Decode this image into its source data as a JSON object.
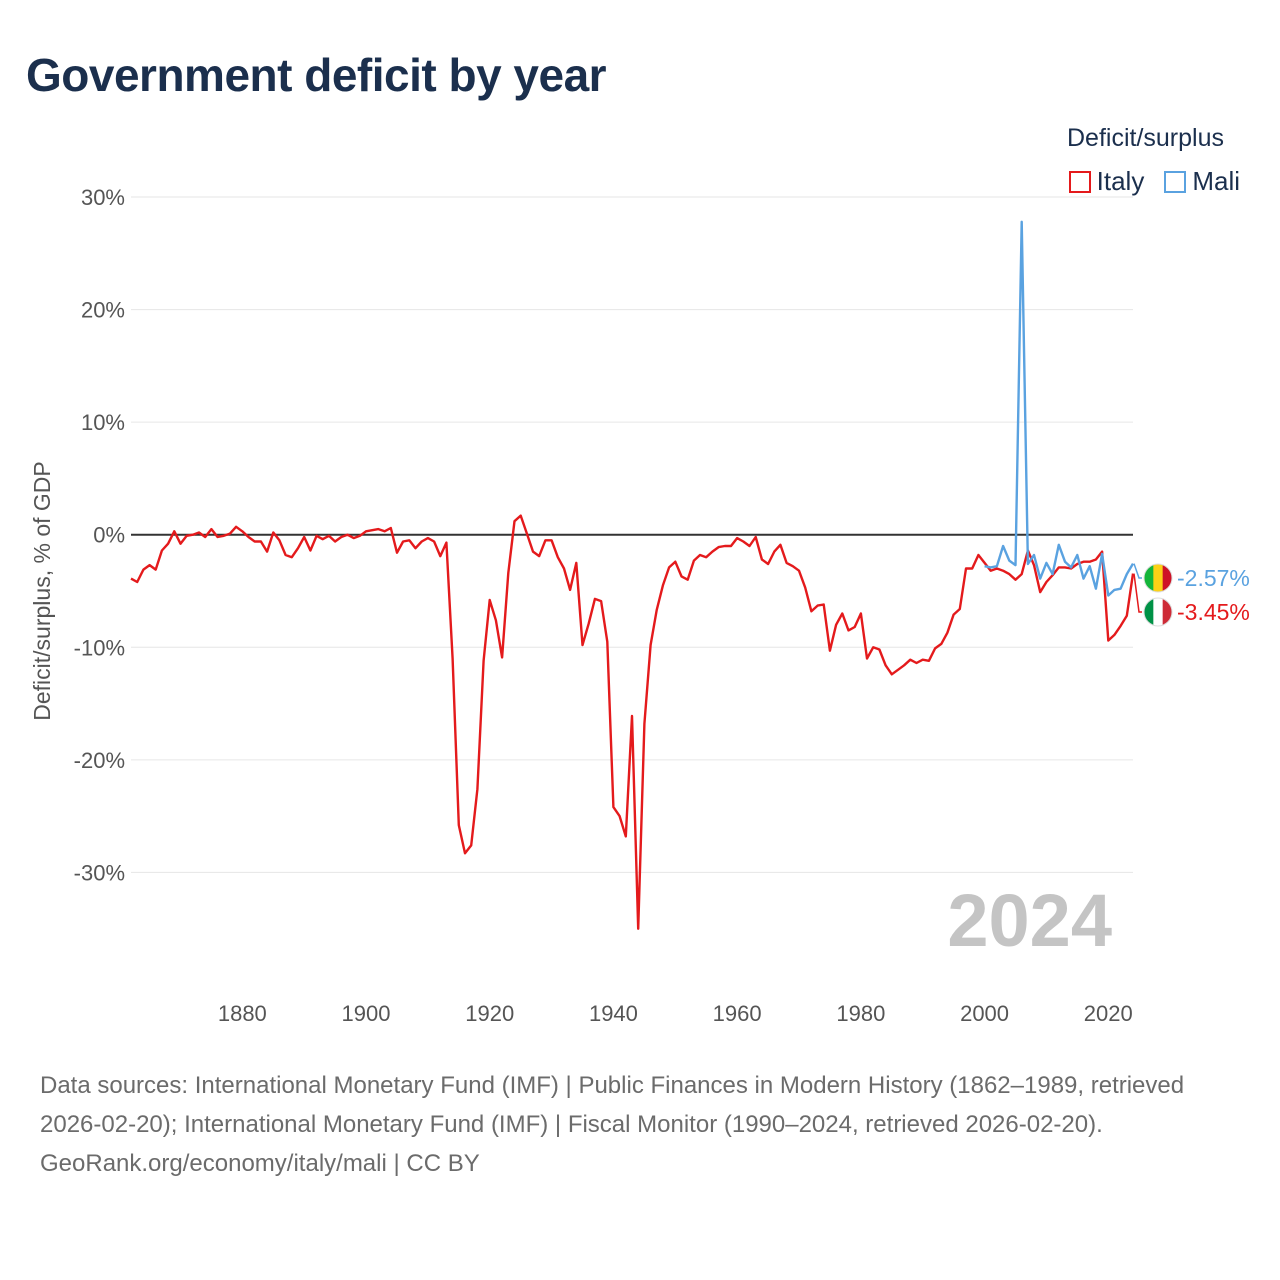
{
  "title": "Government deficit by year",
  "legend": {
    "title": "Deficit/surplus",
    "items": [
      {
        "label": "Italy",
        "color": "#e41a1c"
      },
      {
        "label": "Mali",
        "color": "#5aa2e0"
      }
    ]
  },
  "year_stamp": "2024",
  "end_labels": {
    "mali": "-2.57%",
    "italy": "-3.45%"
  },
  "flags": {
    "mali": [
      "#14b53a",
      "#fcd116",
      "#ce1126"
    ],
    "italy": [
      "#009246",
      "#ffffff",
      "#ce2b37"
    ]
  },
  "footer": {
    "sources": "Data sources: International Monetary Fund (IMF) | Public Finances in Modern History (1862–1989, retrieved 2026-02-20); International Monetary Fund (IMF) | Fiscal Monitor (1990–2024, retrieved 2026-02-20).",
    "credit": "GeoRank.org/economy/italy/mali | CC BY"
  },
  "chart_data": {
    "type": "line",
    "title": "Government deficit by year",
    "xlabel": "",
    "ylabel": "Deficit/surplus, % of GDP",
    "xlim": [
      1862,
      2024
    ],
    "ylim": [
      -40,
      30
    ],
    "yticks": [
      30,
      20,
      10,
      0,
      -10,
      -20,
      -30
    ],
    "ytick_labels": [
      "30%",
      "20%",
      "10%",
      "0%",
      "-10%",
      "-20%",
      "-30%"
    ],
    "xticks": [
      1880,
      1900,
      1920,
      1940,
      1960,
      1980,
      2000,
      2020
    ],
    "xtick_labels": [
      "1880",
      "1900",
      "1920",
      "1940",
      "1960",
      "1980",
      "2000",
      "2020"
    ],
    "grid": true,
    "series": [
      {
        "name": "Italy",
        "color": "#e41a1c",
        "x": [
          1862,
          1863,
          1864,
          1865,
          1866,
          1867,
          1868,
          1869,
          1870,
          1871,
          1872,
          1873,
          1874,
          1875,
          1876,
          1877,
          1878,
          1879,
          1880,
          1881,
          1882,
          1883,
          1884,
          1885,
          1886,
          1887,
          1888,
          1889,
          1890,
          1891,
          1892,
          1893,
          1894,
          1895,
          1896,
          1897,
          1898,
          1899,
          1900,
          1901,
          1902,
          1903,
          1904,
          1905,
          1906,
          1907,
          1908,
          1909,
          1910,
          1911,
          1912,
          1913,
          1914,
          1915,
          1916,
          1917,
          1918,
          1919,
          1920,
          1921,
          1922,
          1923,
          1924,
          1925,
          1926,
          1927,
          1928,
          1929,
          1930,
          1931,
          1932,
          1933,
          1934,
          1935,
          1936,
          1937,
          1938,
          1939,
          1940,
          1941,
          1942,
          1943,
          1944,
          1945,
          1946,
          1947,
          1948,
          1949,
          1950,
          1951,
          1952,
          1953,
          1954,
          1955,
          1956,
          1957,
          1958,
          1959,
          1960,
          1961,
          1962,
          1963,
          1964,
          1965,
          1966,
          1967,
          1968,
          1969,
          1970,
          1971,
          1972,
          1973,
          1974,
          1975,
          1976,
          1977,
          1978,
          1979,
          1980,
          1981,
          1982,
          1983,
          1984,
          1985,
          1986,
          1987,
          1988,
          1989,
          1990,
          1991,
          1992,
          1993,
          1994,
          1995,
          1996,
          1997,
          1998,
          1999,
          2000,
          2001,
          2002,
          2003,
          2004,
          2005,
          2006,
          2007,
          2008,
          2009,
          2010,
          2011,
          2012,
          2013,
          2014,
          2015,
          2016,
          2017,
          2018,
          2019,
          2020,
          2021,
          2022,
          2023,
          2024
        ],
        "values": [
          -3.9,
          -4.2,
          -3.1,
          -2.7,
          -3.1,
          -1.4,
          -0.8,
          0.3,
          -0.8,
          -0.1,
          0.0,
          0.2,
          -0.2,
          0.5,
          -0.2,
          -0.1,
          0.1,
          0.7,
          0.3,
          -0.2,
          -0.6,
          -0.6,
          -1.5,
          0.2,
          -0.5,
          -1.8,
          -2.0,
          -1.2,
          -0.2,
          -1.4,
          -0.1,
          -0.4,
          -0.1,
          -0.6,
          -0.2,
          0.0,
          -0.3,
          -0.1,
          0.3,
          0.4,
          0.5,
          0.3,
          0.6,
          -1.6,
          -0.6,
          -0.5,
          -1.2,
          -0.6,
          -0.3,
          -0.6,
          -1.9,
          -0.7,
          -11.0,
          -25.8,
          -28.3,
          -27.6,
          -22.6,
          -11.2,
          -5.8,
          -7.6,
          -10.9,
          -3.4,
          1.2,
          1.7,
          0.1,
          -1.5,
          -1.9,
          -0.5,
          -0.5,
          -2.0,
          -3.0,
          -4.9,
          -2.5,
          -9.8,
          -7.9,
          -5.7,
          -5.9,
          -9.5,
          -24.2,
          -25.0,
          -26.8,
          -16.1,
          -35.0,
          -16.8,
          -9.8,
          -6.7,
          -4.5,
          -2.9,
          -2.4,
          -3.7,
          -4.0,
          -2.3,
          -1.8,
          -2.0,
          -1.5,
          -1.1,
          -1.0,
          -1.0,
          -0.3,
          -0.6,
          -1.0,
          -0.2,
          -2.2,
          -2.6,
          -1.5,
          -0.9,
          -2.5,
          -2.8,
          -3.2,
          -4.7,
          -6.8,
          -6.3,
          -6.2,
          -10.3,
          -8.0,
          -7.0,
          -8.5,
          -8.2,
          -7.0,
          -11.0,
          -10.0,
          -10.2,
          -11.6,
          -12.4,
          -12.0,
          -11.6,
          -11.1,
          -11.4,
          -11.1,
          -11.2,
          -10.1,
          -9.7,
          -8.7,
          -7.1,
          -6.6,
          -3.0,
          -3.0,
          -1.8,
          -2.5,
          -3.2,
          -3.0,
          -3.2,
          -3.5,
          -4.0,
          -3.5,
          -1.4,
          -2.7,
          -5.1,
          -4.2,
          -3.6,
          -2.9,
          -2.9,
          -3.0,
          -2.6,
          -2.4,
          -2.4,
          -2.2,
          -1.5,
          -9.4,
          -8.9,
          -8.1,
          -7.2,
          -3.45
        ]
      },
      {
        "name": "Mali",
        "color": "#5aa2e0",
        "x": [
          2000,
          2001,
          2002,
          2003,
          2004,
          2005,
          2006,
          2007,
          2008,
          2009,
          2010,
          2011,
          2012,
          2013,
          2014,
          2015,
          2016,
          2017,
          2018,
          2019,
          2020,
          2021,
          2022,
          2023,
          2024
        ],
        "values": [
          -2.8,
          -2.9,
          -2.8,
          -1.0,
          -2.3,
          -2.7,
          27.8,
          -2.6,
          -1.8,
          -3.9,
          -2.5,
          -3.5,
          -0.9,
          -2.4,
          -2.9,
          -1.8,
          -3.9,
          -2.8,
          -4.8,
          -1.7,
          -5.4,
          -4.9,
          -4.8,
          -3.5,
          -2.57
        ]
      }
    ],
    "end_labels": [
      "-2.57%",
      "-3.45%"
    ],
    "annotation": "2024"
  }
}
